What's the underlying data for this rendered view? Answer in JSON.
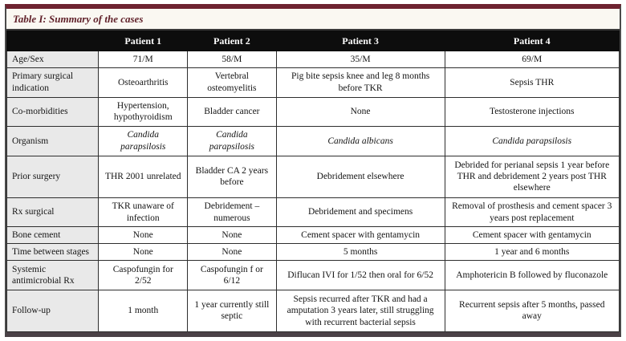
{
  "title": "Table I: Summary of the cases",
  "colors": {
    "accent_maroon": "#6e2330",
    "header_bg": "#0d0d0d",
    "label_bg": "#e9e9e9",
    "bottom_rule": "#4a4146"
  },
  "table": {
    "columns": [
      "",
      "Patient 1",
      "Patient 2",
      "Patient 3",
      "Patient 4"
    ],
    "rows": [
      {
        "label": "Age/Sex",
        "cells": [
          "71/M",
          "58/M",
          "35/M",
          "69/M"
        ],
        "italic": false
      },
      {
        "label": "Primary surgical indication",
        "cells": [
          "Osteoarthritis",
          "Vertebral osteomyelitis",
          "Pig bite sepsis knee and leg 8 months before TKR",
          "Sepsis THR"
        ],
        "italic": false
      },
      {
        "label": "Co-morbidities",
        "cells": [
          "Hypertension, hypothyroidism",
          "Bladder cancer",
          "None",
          "Testosterone injections"
        ],
        "italic": false
      },
      {
        "label": "Organism",
        "cells": [
          "Candida parapsilosis",
          "Candida parapsilosis",
          "Candida albicans",
          "Candida parapsilosis"
        ],
        "italic": true
      },
      {
        "label": "Prior surgery",
        "cells": [
          "THR 2001 unrelated",
          "Bladder CA 2 years before",
          "Debridement elsewhere",
          "Debrided for perianal sepsis 1 year before THR and debridement 2 years post THR elsewhere"
        ],
        "italic": false
      },
      {
        "label": "Rx surgical",
        "cells": [
          "TKR unaware of infection",
          "Debridement – numerous",
          "Debridement and specimens",
          "Removal of prosthesis and cement spacer 3 years post replacement"
        ],
        "italic": false
      },
      {
        "label": "Bone cement",
        "cells": [
          "None",
          "None",
          "Cement spacer with gentamycin",
          "Cement spacer with gentamycin"
        ],
        "italic": false
      },
      {
        "label": "Time between stages",
        "cells": [
          "None",
          "None",
          "5 months",
          "1 year and 6 months"
        ],
        "italic": false
      },
      {
        "label": "Systemic antimicrobial Rx",
        "cells": [
          "Caspofungin for 2/52",
          "Caspofungin f or 6/12",
          "Diflucan IVI for 1/52 then oral for 6/52",
          "Amphotericin B followed by fluconazole"
        ],
        "italic": false
      },
      {
        "label": "Follow-up",
        "cells": [
          "1 month",
          "1 year currently still septic",
          "Sepsis recurred after TKR and had a amputation 3 years later, still struggling with recurrent bacterial sepsis",
          "Recurrent sepsis after 5 months, passed away"
        ],
        "italic": false
      }
    ]
  }
}
